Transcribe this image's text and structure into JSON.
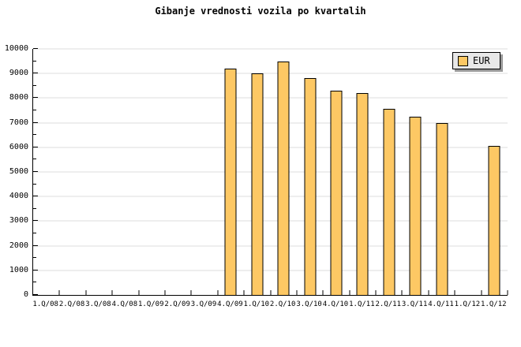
{
  "title": "Gibanje vrednosti vozila po kvartalih",
  "legend": {
    "label": "EUR",
    "swatch_color": "#fdc864"
  },
  "colors": {
    "bar_fill": "#fdc864",
    "bar_border": "#000000",
    "gridline": "#dcdcdc",
    "axis": "#000000",
    "legend_bg": "#e8e8e8",
    "legend_shadow": "#999999",
    "background": "#ffffff"
  },
  "chart_data": {
    "type": "bar",
    "title": "Gibanje vrednosti vozila po kvartalih",
    "categories": [
      "1.Q/08",
      "2.Q/08",
      "3.Q/08",
      "4.Q/08",
      "1.Q/09",
      "2.Q/09",
      "3.Q/09",
      "4.Q/09",
      "1.Q/10",
      "2.Q/10",
      "3.Q/10",
      "4.Q/10",
      "1.Q/11",
      "2.Q/11",
      "3.Q/11",
      "4.Q/11",
      "1.Q/12",
      "1.Q/12"
    ],
    "series": [
      {
        "name": "EUR",
        "values": [
          null,
          null,
          null,
          null,
          null,
          null,
          null,
          9200,
          9000,
          9500,
          8800,
          8300,
          8200,
          7550,
          7250,
          7000,
          null,
          6050
        ]
      }
    ],
    "xlabel": "",
    "ylabel": "",
    "ylim": [
      0,
      10000
    ],
    "ytick_interval": 1000,
    "yminor_interval": 500,
    "grid": true,
    "legend_position": "top-right"
  }
}
